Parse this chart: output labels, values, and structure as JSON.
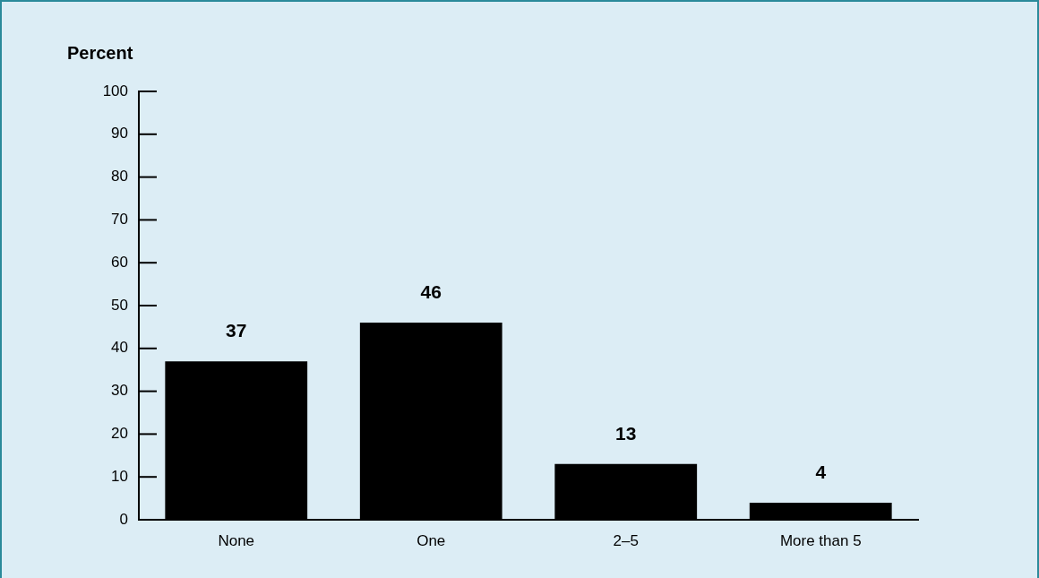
{
  "chart_data": {
    "type": "bar",
    "ylabel": "Percent",
    "categories": [
      "None",
      "One",
      "2–5",
      "More than 5"
    ],
    "values": [
      37,
      46,
      13,
      4
    ],
    "color": "#000000",
    "ylim": [
      0,
      100
    ],
    "yticks": [
      0,
      10,
      20,
      30,
      40,
      50,
      60,
      70,
      80,
      90,
      100
    ],
    "grid": false,
    "legend": false,
    "data_labels": true
  }
}
